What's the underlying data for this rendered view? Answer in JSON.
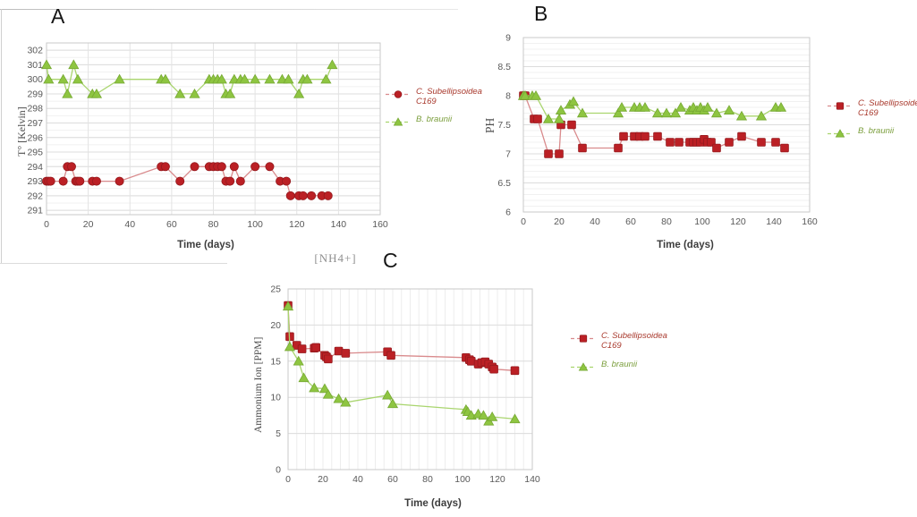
{
  "colors": {
    "red_marker": "#bb2025",
    "red_line": "#d98b8d",
    "green_marker": "#8ec541",
    "green_line": "#a9d56e",
    "grid_major": "#dcdcdc",
    "grid_minor": "#f1f1f1",
    "axis_text": "#595959",
    "legend_red_text": "#a93a2e",
    "legend_green_text": "#7c9f3e"
  },
  "chart_data": [
    {
      "id": "temperature",
      "panel_label": "A",
      "type": "line",
      "title": "",
      "xlabel": "Time (days)",
      "ylabel": "T° [Kelvin]",
      "xlim": [
        0,
        160
      ],
      "ylim": [
        291,
        302
      ],
      "x_ticks": [
        0,
        20,
        40,
        60,
        80,
        100,
        120,
        140,
        160
      ],
      "y_ticks": [
        291,
        292,
        293,
        294,
        295,
        296,
        297,
        298,
        299,
        300,
        301,
        302
      ],
      "grid": "horizontal major+minor, vertical at x ticks",
      "legend_position": "right",
      "series": [
        {
          "name": "C. Subellipsoidea C169",
          "marker": "circle",
          "color": "#bb2025",
          "marker_stroke": "#951a1e",
          "line_color": "#d98b8d",
          "points": [
            [
              0,
              293
            ],
            [
              1,
              293
            ],
            [
              2,
              293
            ],
            [
              8,
              293
            ],
            [
              10,
              294
            ],
            [
              12,
              294
            ],
            [
              14,
              293
            ],
            [
              15,
              293
            ],
            [
              16,
              293
            ],
            [
              22,
              293
            ],
            [
              24,
              293
            ],
            [
              35,
              293
            ],
            [
              55,
              294
            ],
            [
              57,
              294
            ],
            [
              64,
              293
            ],
            [
              71,
              294
            ],
            [
              78,
              294
            ],
            [
              80,
              294
            ],
            [
              82,
              294
            ],
            [
              84,
              294
            ],
            [
              86,
              293
            ],
            [
              88,
              293
            ],
            [
              90,
              294
            ],
            [
              93,
              293
            ],
            [
              100,
              294
            ],
            [
              107,
              294
            ],
            [
              112,
              293
            ],
            [
              115,
              293
            ],
            [
              117,
              292
            ],
            [
              121,
              292
            ],
            [
              123,
              292
            ],
            [
              127,
              292
            ],
            [
              132,
              292
            ],
            [
              135,
              292
            ]
          ]
        },
        {
          "name": "B. braunii",
          "marker": "triangle",
          "color": "#8ec541",
          "marker_stroke": "#76a833",
          "line_color": "#a9d56e",
          "points": [
            [
              0,
              301
            ],
            [
              1,
              300
            ],
            [
              8,
              300
            ],
            [
              10,
              299
            ],
            [
              13,
              301
            ],
            [
              15,
              300
            ],
            [
              22,
              299
            ],
            [
              24,
              299
            ],
            [
              35,
              300
            ],
            [
              55,
              300
            ],
            [
              57,
              300
            ],
            [
              64,
              299
            ],
            [
              71,
              299
            ],
            [
              78,
              300
            ],
            [
              80,
              300
            ],
            [
              82,
              300
            ],
            [
              84,
              300
            ],
            [
              86,
              299
            ],
            [
              88,
              299
            ],
            [
              90,
              300
            ],
            [
              93,
              300
            ],
            [
              95,
              300
            ],
            [
              100,
              300
            ],
            [
              107,
              300
            ],
            [
              113,
              300
            ],
            [
              116,
              300
            ],
            [
              121,
              299
            ],
            [
              123,
              300
            ],
            [
              125,
              300
            ],
            [
              134,
              300
            ],
            [
              137,
              301
            ]
          ]
        }
      ]
    },
    {
      "id": "ph",
      "panel_label": "B",
      "type": "line",
      "title": "",
      "xlabel": "Time (days)",
      "ylabel": "PH",
      "xlim": [
        0,
        160
      ],
      "ylim": [
        6,
        9
      ],
      "x_ticks": [
        0,
        20,
        40,
        60,
        80,
        100,
        120,
        140,
        160
      ],
      "y_ticks": [
        6,
        6.5,
        7,
        7.5,
        8,
        8.5,
        9
      ],
      "grid": "horizontal major every 0.5 + minor every 0.1",
      "legend_position": "right",
      "series": [
        {
          "name": "C. Subellipsoidea C169",
          "marker": "square",
          "color": "#bb2025",
          "marker_stroke": "#951a1e",
          "line_color": "#d98b8d",
          "points": [
            [
              0,
              8
            ],
            [
              1,
              8
            ],
            [
              6,
              7.6
            ],
            [
              8,
              7.6
            ],
            [
              14,
              7
            ],
            [
              20,
              7
            ],
            [
              21,
              7.5
            ],
            [
              27,
              7.5
            ],
            [
              33,
              7.1
            ],
            [
              53,
              7.1
            ],
            [
              56,
              7.3
            ],
            [
              62,
              7.3
            ],
            [
              65,
              7.3
            ],
            [
              68,
              7.3
            ],
            [
              75,
              7.3
            ],
            [
              82,
              7.2
            ],
            [
              87,
              7.2
            ],
            [
              93,
              7.2
            ],
            [
              95,
              7.2
            ],
            [
              97,
              7.2
            ],
            [
              99,
              7.2
            ],
            [
              101,
              7.25
            ],
            [
              103,
              7.2
            ],
            [
              105,
              7.2
            ],
            [
              108,
              7.1
            ],
            [
              115,
              7.2
            ],
            [
              122,
              7.3
            ],
            [
              133,
              7.2
            ],
            [
              141,
              7.2
            ],
            [
              146,
              7.1
            ]
          ]
        },
        {
          "name": "B. braunii",
          "marker": "triangle",
          "color": "#8ec541",
          "marker_stroke": "#76a833",
          "line_color": "#a9d56e",
          "points": [
            [
              0,
              8
            ],
            [
              1,
              8
            ],
            [
              5,
              8
            ],
            [
              7,
              8
            ],
            [
              14,
              7.6
            ],
            [
              20,
              7.6
            ],
            [
              21,
              7.75
            ],
            [
              26,
              7.85
            ],
            [
              28,
              7.9
            ],
            [
              33,
              7.7
            ],
            [
              53,
              7.7
            ],
            [
              55,
              7.8
            ],
            [
              62,
              7.8
            ],
            [
              65,
              7.8
            ],
            [
              68,
              7.8
            ],
            [
              75,
              7.7
            ],
            [
              80,
              7.7
            ],
            [
              85,
              7.7
            ],
            [
              88,
              7.8
            ],
            [
              93,
              7.75
            ],
            [
              95,
              7.8
            ],
            [
              97,
              7.75
            ],
            [
              99,
              7.8
            ],
            [
              101,
              7.75
            ],
            [
              103,
              7.8
            ],
            [
              108,
              7.7
            ],
            [
              115,
              7.75
            ],
            [
              122,
              7.65
            ],
            [
              133,
              7.65
            ],
            [
              141,
              7.8
            ],
            [
              144,
              7.8
            ]
          ]
        }
      ]
    },
    {
      "id": "ammonium",
      "panel_label": "C",
      "type": "line",
      "title": "[NH4+]",
      "xlabel": "Time (days)",
      "ylabel": "Ammonium Ion [PPM]",
      "xlim": [
        0,
        140
      ],
      "ylim": [
        0,
        25
      ],
      "x_ticks": [
        0,
        20,
        40,
        60,
        80,
        100,
        120,
        140
      ],
      "y_ticks": [
        0,
        5,
        10,
        15,
        20,
        25
      ],
      "grid": "horizontal major every 5, vertical minor every 5",
      "legend_position": "right",
      "series": [
        {
          "name": "C. Subellipsoidea C169",
          "marker": "square",
          "color": "#bb2025",
          "marker_stroke": "#951a1e",
          "line_color": "#d98b8d",
          "points": [
            [
              0,
              22.7
            ],
            [
              1,
              18.4
            ],
            [
              5,
              17.2
            ],
            [
              8,
              16.7
            ],
            [
              15,
              16.8
            ],
            [
              16,
              16.9
            ],
            [
              21,
              15.8
            ],
            [
              22,
              15.6
            ],
            [
              23,
              15.3
            ],
            [
              29,
              16.4
            ],
            [
              33,
              16.1
            ],
            [
              57,
              16.3
            ],
            [
              59,
              15.8
            ],
            [
              102,
              15.5
            ],
            [
              104,
              15.2
            ],
            [
              105,
              15.0
            ],
            [
              109,
              14.6
            ],
            [
              111,
              14.8
            ],
            [
              113,
              14.9
            ],
            [
              115,
              14.6
            ],
            [
              117,
              14.2
            ],
            [
              118,
              13.9
            ],
            [
              130,
              13.7
            ]
          ]
        },
        {
          "name": "B. braunii",
          "marker": "triangle",
          "color": "#8ec541",
          "marker_stroke": "#76a833",
          "line_color": "#a9d56e",
          "points": [
            [
              0,
              22.6
            ],
            [
              1,
              17.0
            ],
            [
              6,
              15.0
            ],
            [
              9,
              12.7
            ],
            [
              15,
              11.3
            ],
            [
              21,
              11.2
            ],
            [
              23,
              10.4
            ],
            [
              29,
              9.8
            ],
            [
              33,
              9.3
            ],
            [
              57,
              10.3
            ],
            [
              60,
              9.1
            ],
            [
              102,
              8.3
            ],
            [
              103,
              8.0
            ],
            [
              105,
              7.5
            ],
            [
              109,
              7.7
            ],
            [
              112,
              7.5
            ],
            [
              115,
              6.7
            ],
            [
              117,
              7.3
            ],
            [
              130,
              7.0
            ]
          ]
        }
      ]
    }
  ]
}
